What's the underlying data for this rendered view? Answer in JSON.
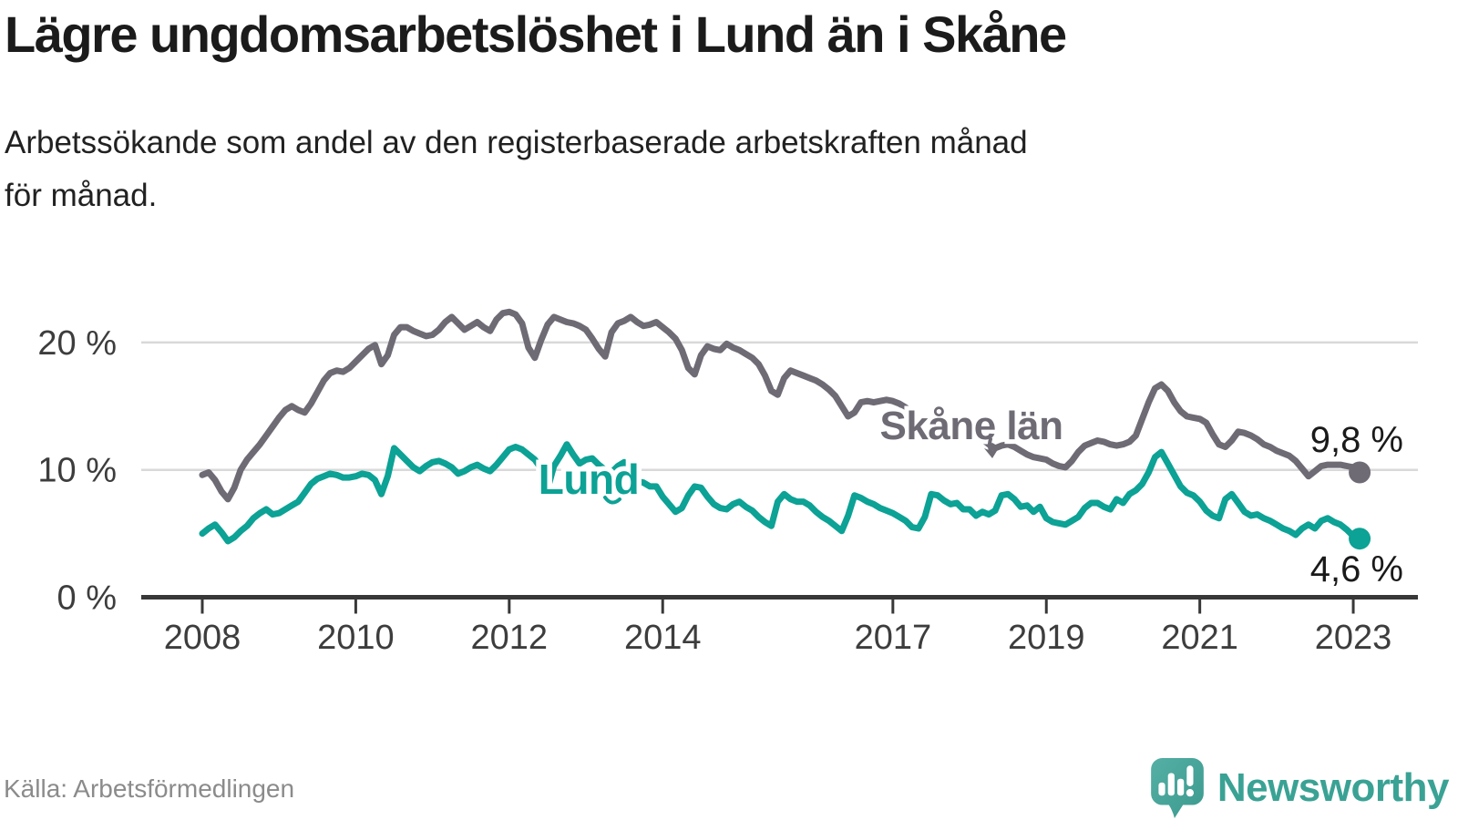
{
  "header": {
    "title": "Lägre ungdomsarbetslöshet i Lund än i Skåne",
    "subtitle_lines": [
      "Arbetssökande som andel av den registerbaserade arbetskraften månad",
      "för månad."
    ]
  },
  "footer": {
    "source": "Källa: Arbetsförmedlingen",
    "brand": "Newsworthy"
  },
  "colors": {
    "skane_line": "#6F6B75",
    "lund_line": "#0CA295",
    "gridline": "#D9D9D9",
    "axis": "#383838",
    "tick_label": "#3D3D3D",
    "end_label": "#1A1A1A",
    "brand_teal": "#3AA294"
  },
  "chart_data": {
    "type": "line",
    "title": "Lägre ungdomsarbetslöshet i Lund än i Skåne",
    "subtitle": "Arbetssökande som andel av den registerbaserade arbetskraften månad för månad.",
    "unit": "%",
    "frequency": "monthly",
    "x_start": "2008-01",
    "x_end": "2023-02",
    "ylim": [
      0,
      24
    ],
    "grid": "horizontal",
    "legend_position": "inline-labels",
    "y_axis": {
      "ticks": [
        {
          "value": 0,
          "label": "0 %"
        },
        {
          "value": 10,
          "label": "10 %"
        },
        {
          "value": 20,
          "label": "20 %"
        }
      ]
    },
    "x_axis": {
      "ticks": [
        {
          "label": "2008",
          "month_index": 0
        },
        {
          "label": "2010",
          "month_index": 24
        },
        {
          "label": "2012",
          "month_index": 48
        },
        {
          "label": "2014",
          "month_index": 72
        },
        {
          "label": "2017",
          "month_index": 108
        },
        {
          "label": "2019",
          "month_index": 132
        },
        {
          "label": "2021",
          "month_index": 156
        },
        {
          "label": "2023",
          "month_index": 180
        }
      ]
    },
    "series": [
      {
        "name": "Skåne län",
        "color": "#6F6B75",
        "end_label": "9,8 %",
        "end_value": 9.8,
        "values": [
          9.6,
          9.8,
          9.2,
          8.3,
          7.7,
          8.6,
          10.0,
          10.8,
          11.4,
          12.0,
          12.7,
          13.4,
          14.1,
          14.7,
          15.0,
          14.7,
          14.5,
          15.2,
          16.1,
          17.0,
          17.6,
          17.8,
          17.7,
          18.0,
          18.5,
          19.0,
          19.5,
          19.8,
          18.3,
          19.0,
          20.6,
          21.2,
          21.2,
          20.9,
          20.7,
          20.5,
          20.6,
          21.0,
          21.6,
          22.0,
          21.5,
          21.0,
          21.3,
          21.6,
          21.2,
          20.9,
          21.8,
          22.3,
          22.4,
          22.2,
          21.5,
          19.6,
          18.8,
          20.2,
          21.4,
          22.0,
          21.8,
          21.6,
          21.5,
          21.3,
          21.0,
          20.3,
          19.5,
          18.9,
          20.8,
          21.5,
          21.7,
          22.0,
          21.6,
          21.3,
          21.4,
          21.6,
          21.2,
          20.8,
          20.3,
          19.4,
          18.0,
          17.5,
          19.0,
          19.7,
          19.5,
          19.4,
          19.9,
          19.6,
          19.4,
          19.1,
          18.8,
          18.3,
          17.4,
          16.2,
          15.9,
          17.2,
          17.8,
          17.6,
          17.4,
          17.2,
          17.0,
          16.7,
          16.3,
          15.8,
          15.0,
          14.2,
          14.5,
          15.3,
          15.4,
          15.3,
          15.4,
          15.5,
          15.4,
          15.2,
          14.9,
          14.5,
          14.0,
          13.5,
          13.7,
          14.1,
          14.0,
          13.7,
          13.4,
          13.2,
          13.0,
          12.7,
          12.4,
          12.0,
          11.7,
          11.9,
          12.0,
          11.8,
          11.5,
          11.2,
          11.0,
          10.9,
          10.8,
          10.5,
          10.3,
          10.2,
          10.7,
          11.4,
          11.9,
          12.1,
          12.3,
          12.2,
          12.0,
          11.9,
          12.0,
          12.2,
          12.7,
          14.0,
          15.3,
          16.4,
          16.7,
          16.2,
          15.3,
          14.6,
          14.2,
          14.1,
          14.0,
          13.7,
          12.8,
          12.0,
          11.8,
          12.3,
          13.0,
          12.9,
          12.7,
          12.4,
          12.0,
          11.8,
          11.5,
          11.3,
          11.1,
          10.7,
          10.1,
          9.5,
          9.9,
          10.3,
          10.4,
          10.4,
          10.4,
          10.3,
          10.2,
          9.8
        ]
      },
      {
        "name": "Lund",
        "color": "#0CA295",
        "end_label": "4,6 %",
        "end_value": 4.6,
        "values": [
          5.0,
          5.4,
          5.7,
          5.1,
          4.4,
          4.7,
          5.2,
          5.6,
          6.2,
          6.6,
          6.9,
          6.5,
          6.6,
          6.9,
          7.2,
          7.5,
          8.2,
          8.9,
          9.3,
          9.5,
          9.7,
          9.6,
          9.4,
          9.4,
          9.5,
          9.7,
          9.6,
          9.2,
          8.1,
          9.5,
          11.7,
          11.2,
          10.7,
          10.2,
          9.9,
          10.3,
          10.6,
          10.7,
          10.5,
          10.2,
          9.7,
          9.9,
          10.2,
          10.4,
          10.1,
          9.9,
          10.4,
          11.0,
          11.6,
          11.8,
          11.6,
          11.2,
          10.8,
          10.1,
          8.5,
          10.3,
          11.1,
          12.0,
          11.2,
          10.5,
          10.8,
          10.9,
          10.4,
          10.0,
          9.8,
          10.3,
          10.6,
          9.5,
          9.1,
          9.0,
          8.7,
          8.7,
          7.9,
          7.3,
          6.7,
          7.0,
          8.0,
          8.7,
          8.6,
          7.9,
          7.3,
          7.0,
          6.9,
          7.3,
          7.5,
          7.1,
          6.8,
          6.3,
          5.9,
          5.6,
          7.5,
          8.1,
          7.7,
          7.5,
          7.5,
          7.2,
          6.7,
          6.3,
          6.0,
          5.6,
          5.2,
          6.4,
          8.0,
          7.8,
          7.5,
          7.3,
          7.0,
          6.8,
          6.6,
          6.3,
          6.0,
          5.5,
          5.4,
          6.3,
          8.1,
          8.0,
          7.6,
          7.3,
          7.4,
          6.9,
          6.9,
          6.4,
          6.7,
          6.5,
          6.8,
          8.0,
          8.1,
          7.7,
          7.1,
          7.2,
          6.7,
          7.1,
          6.2,
          5.9,
          5.8,
          5.7,
          6.0,
          6.3,
          7.0,
          7.4,
          7.4,
          7.1,
          6.9,
          7.7,
          7.4,
          8.1,
          8.4,
          8.9,
          9.8,
          11.0,
          11.4,
          10.5,
          9.6,
          8.7,
          8.2,
          8.0,
          7.5,
          6.8,
          6.4,
          6.2,
          7.7,
          8.1,
          7.4,
          6.7,
          6.4,
          6.5,
          6.2,
          6.0,
          5.7,
          5.4,
          5.2,
          4.9,
          5.4,
          5.7,
          5.4,
          6.0,
          6.2,
          5.9,
          5.7,
          5.3,
          4.8,
          4.6
        ]
      }
    ],
    "annotations": [
      {
        "text": "Skåne län",
        "points_to": "Skåne län line"
      },
      {
        "text": "Lund",
        "points_to": "Lund line"
      }
    ]
  }
}
